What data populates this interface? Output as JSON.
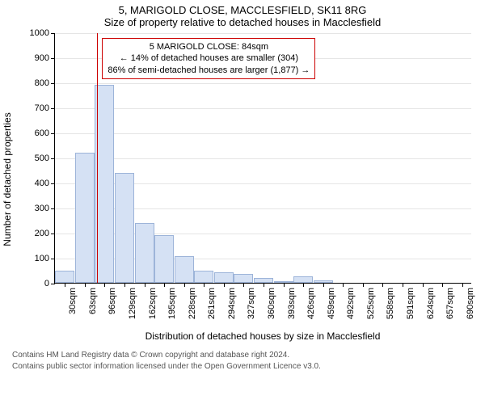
{
  "title_line1": "5, MARIGOLD CLOSE, MACCLESFIELD, SK11 8RG",
  "title_line2": "Size of property relative to detached houses in Macclesfield",
  "y_label": "Number of detached properties",
  "x_label": "Distribution of detached houses by size in Macclesfield",
  "chart": {
    "type": "histogram",
    "ylim": [
      0,
      1000
    ],
    "ytick_step": 100,
    "x_categories": [
      "30sqm",
      "63sqm",
      "96sqm",
      "129sqm",
      "162sqm",
      "195sqm",
      "228sqm",
      "261sqm",
      "294sqm",
      "327sqm",
      "360sqm",
      "393sqm",
      "426sqm",
      "459sqm",
      "492sqm",
      "525sqm",
      "558sqm",
      "591sqm",
      "624sqm",
      "657sqm",
      "690sqm"
    ],
    "bars": [
      50,
      520,
      790,
      440,
      240,
      190,
      105,
      50,
      42,
      35,
      20,
      8,
      25,
      10,
      0,
      0,
      0,
      0,
      0,
      0,
      0
    ],
    "bar_fill": "#d5e1f4",
    "bar_stroke": "#9db4d9",
    "grid_color": "#e5e5e5",
    "background": "#ffffff",
    "marker_value_index": 1.63,
    "marker_color": "#cc0000"
  },
  "annotation": {
    "line1": "5 MARIGOLD CLOSE: 84sqm",
    "line2": "← 14% of detached houses are smaller (304)",
    "line3": "86% of semi-detached houses are larger (1,877) →",
    "border_color": "#cc0000"
  },
  "footer_line1": "Contains HM Land Registry data © Crown copyright and database right 2024.",
  "footer_line2": "Contains public sector information licensed under the Open Government Licence v3.0."
}
